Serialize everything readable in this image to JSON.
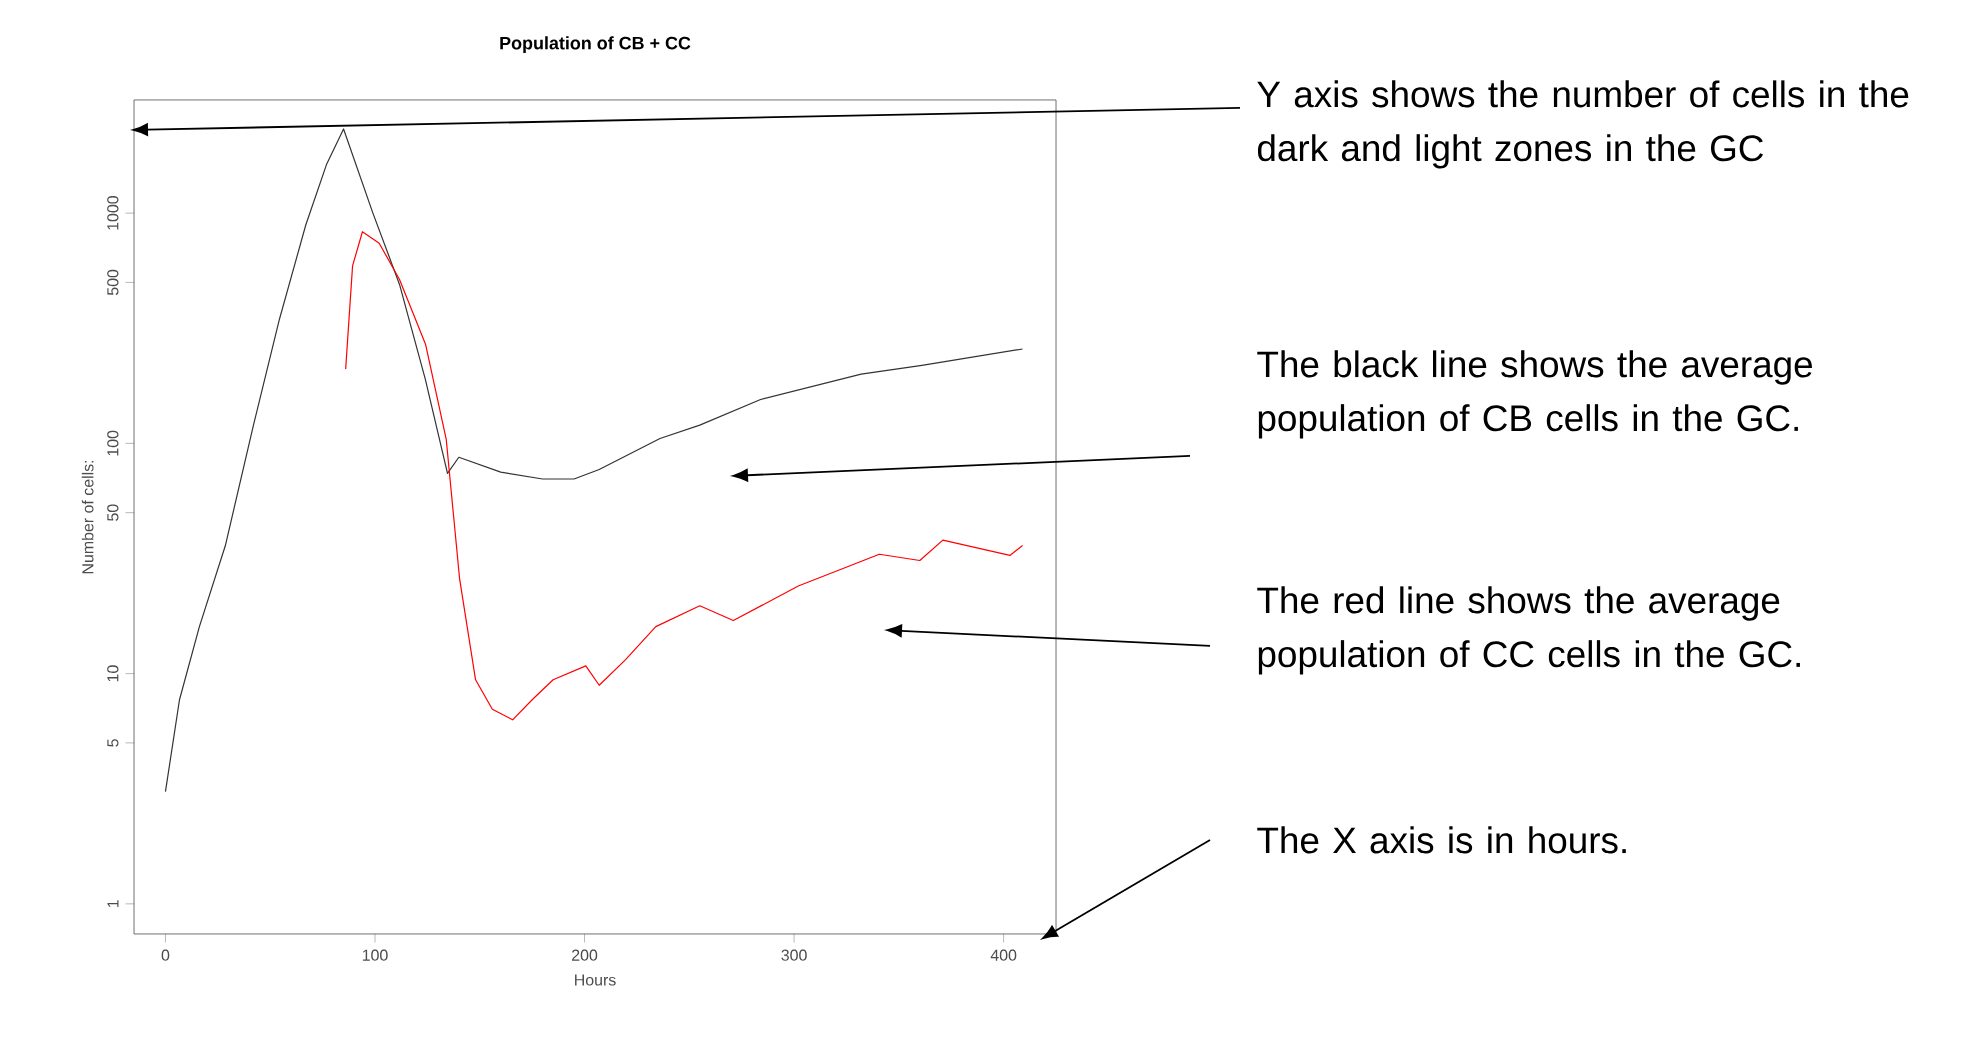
{
  "chart_data": {
    "type": "line",
    "title": "Population of CB + CC",
    "xlabel": "Hours",
    "ylabel": "Number of cells:",
    "log": "y",
    "grid": false,
    "marker": "none",
    "line_style": "solid",
    "xlim": [
      -15,
      425
    ],
    "ylim": [
      0.74,
      3100
    ],
    "xticks": [
      0,
      100,
      200,
      300,
      400
    ],
    "yticks": [
      1,
      5,
      10,
      50,
      100,
      500,
      1000
    ],
    "series": [
      {
        "color": "#333333",
        "x": [
          0,
          6.7,
          16.2,
          28.6,
          42,
          54.4,
          67,
          76.8,
          85,
          99,
          111.7,
          124,
          134.6,
          140,
          160,
          180,
          195,
          207,
          236,
          255,
          284,
          332,
          361,
          409
        ],
        "values": [
          3.07,
          7.7,
          16,
          36,
          120,
          346,
          890,
          1620,
          2320,
          1000,
          490,
          190,
          74,
          87,
          75,
          70,
          70,
          77,
          105,
          120,
          155,
          200,
          218,
          257
        ]
      },
      {
        "color": "#ff0000",
        "x": [
          86,
          89.3,
          94,
          102,
          111.7,
          124.2,
          134,
          140.4,
          148,
          156,
          165.7,
          175,
          185,
          200.6,
          207,
          219.6,
          234,
          255,
          271,
          302,
          340.7,
          360,
          371,
          403,
          409
        ],
        "values": [
          210,
          590,
          830,
          740,
          515,
          268,
          104,
          25.7,
          9.4,
          7.0,
          6.3,
          7.7,
          9.4,
          10.8,
          8.9,
          11.5,
          16,
          19.7,
          17,
          24,
          33,
          31,
          38,
          32.6,
          36
        ]
      }
    ],
    "annotations": [
      "Y axis shows the number of cells in the dark and light zones in the GC",
      "The black line shows the average population of CB cells in the GC.",
      "The red line shows the average population of CC cells in the GC.",
      "The X axis is in hours."
    ]
  }
}
